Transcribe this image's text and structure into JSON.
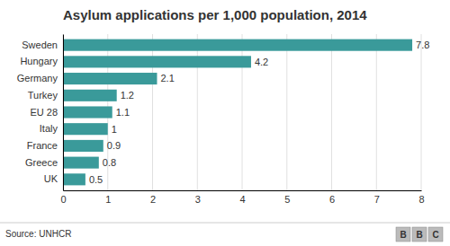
{
  "chart_data": {
    "type": "bar",
    "orientation": "horizontal",
    "title": "Asylum applications per 1,000 population, 2014",
    "categories": [
      "Sweden",
      "Hungary",
      "Germany",
      "Turkey",
      "EU 28",
      "Italy",
      "France",
      "Greece",
      "UK"
    ],
    "values": [
      7.8,
      4.2,
      2.1,
      1.2,
      1.1,
      1.0,
      0.9,
      0.8,
      0.5
    ],
    "value_labels": [
      "7.8",
      "4.2",
      "2.1",
      "1.2",
      "1.1",
      "1",
      "0.9",
      "0.8",
      "0.5"
    ],
    "data_labels": true,
    "color": "#3a9a9a",
    "xlim": [
      0,
      8
    ],
    "xticks": [
      0,
      1,
      2,
      3,
      4,
      5,
      6,
      7,
      8
    ],
    "grid": true,
    "annotations": [
      "Source: UNHCR",
      "BBC"
    ]
  }
}
